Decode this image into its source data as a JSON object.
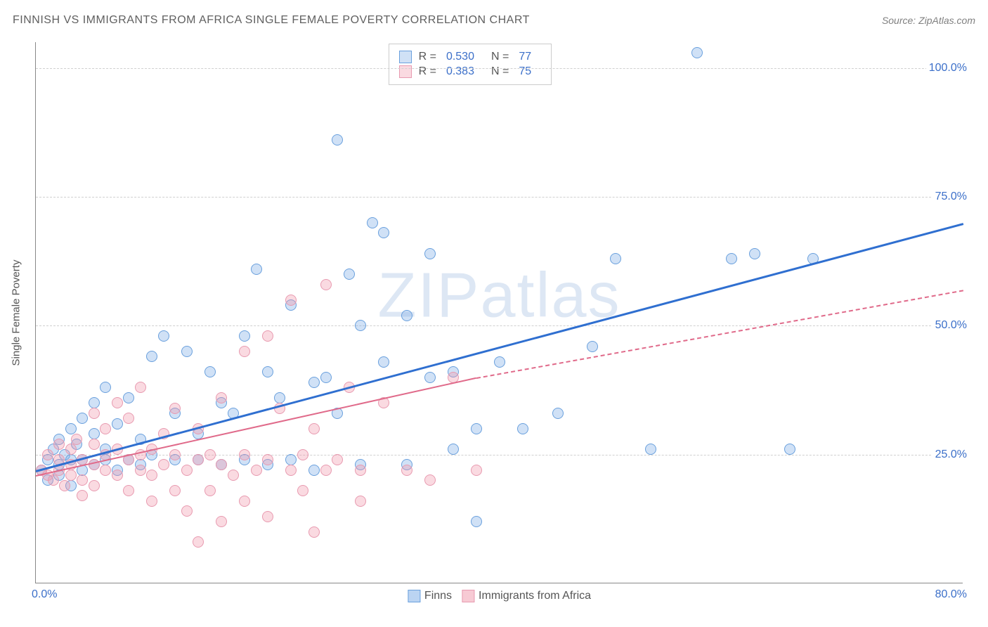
{
  "title": "FINNISH VS IMMIGRANTS FROM AFRICA SINGLE FEMALE POVERTY CORRELATION CHART",
  "source": "Source: ZipAtlas.com",
  "ylabel": "Single Female Poverty",
  "watermark_a": "ZIP",
  "watermark_b": "atlas",
  "chart": {
    "type": "scatter",
    "xlim": [
      0,
      80
    ],
    "ylim": [
      0,
      105
    ],
    "xtick_left": "0.0%",
    "xtick_right": "80.0%",
    "yticks": [
      {
        "v": 25,
        "label": "25.0%"
      },
      {
        "v": 50,
        "label": "50.0%"
      },
      {
        "v": 75,
        "label": "75.0%"
      },
      {
        "v": 100,
        "label": "100.0%"
      }
    ],
    "grid_color": "#d0d0d0",
    "background_color": "#ffffff",
    "point_radius": 8,
    "series": [
      {
        "name": "Finns",
        "fill": "rgba(120,170,230,0.35)",
        "stroke": "#6aa0dd",
        "r_label": "R =",
        "r_value": "0.530",
        "n_label": "N =",
        "n_value": "77",
        "trend": {
          "x1": 0,
          "y1": 22,
          "x2": 80,
          "y2": 70,
          "color": "#2f6fd0",
          "width": 3,
          "dashed": false
        },
        "points": [
          [
            0.5,
            22
          ],
          [
            1,
            24
          ],
          [
            1,
            20
          ],
          [
            1.5,
            26
          ],
          [
            2,
            23
          ],
          [
            2,
            21
          ],
          [
            2,
            28
          ],
          [
            2.5,
            25
          ],
          [
            3,
            24
          ],
          [
            3,
            30
          ],
          [
            3,
            19
          ],
          [
            3.5,
            27
          ],
          [
            4,
            22
          ],
          [
            4,
            32
          ],
          [
            4,
            24
          ],
          [
            5,
            29
          ],
          [
            5,
            35
          ],
          [
            5,
            23
          ],
          [
            6,
            26
          ],
          [
            6,
            38
          ],
          [
            6,
            24
          ],
          [
            7,
            31
          ],
          [
            7,
            22
          ],
          [
            8,
            36
          ],
          [
            8,
            24
          ],
          [
            9,
            28
          ],
          [
            9,
            23
          ],
          [
            10,
            25
          ],
          [
            10,
            44
          ],
          [
            11,
            48
          ],
          [
            12,
            33
          ],
          [
            12,
            24
          ],
          [
            13,
            45
          ],
          [
            14,
            29
          ],
          [
            14,
            24
          ],
          [
            15,
            41
          ],
          [
            16,
            35
          ],
          [
            16,
            23
          ],
          [
            17,
            33
          ],
          [
            18,
            48
          ],
          [
            18,
            24
          ],
          [
            19,
            61
          ],
          [
            20,
            41
          ],
          [
            20,
            23
          ],
          [
            21,
            36
          ],
          [
            22,
            54
          ],
          [
            22,
            24
          ],
          [
            24,
            39
          ],
          [
            24,
            22
          ],
          [
            25,
            40
          ],
          [
            26,
            86
          ],
          [
            26,
            33
          ],
          [
            27,
            60
          ],
          [
            28,
            50
          ],
          [
            28,
            23
          ],
          [
            29,
            70
          ],
          [
            30,
            43
          ],
          [
            30,
            68
          ],
          [
            32,
            52
          ],
          [
            32,
            23
          ],
          [
            34,
            40
          ],
          [
            34,
            64
          ],
          [
            36,
            41
          ],
          [
            36,
            26
          ],
          [
            38,
            12
          ],
          [
            38,
            30
          ],
          [
            40,
            43
          ],
          [
            42,
            30
          ],
          [
            45,
            33
          ],
          [
            48,
            46
          ],
          [
            50,
            63
          ],
          [
            53,
            26
          ],
          [
            57,
            103
          ],
          [
            60,
            63
          ],
          [
            62,
            64
          ],
          [
            65,
            26
          ],
          [
            67,
            63
          ]
        ]
      },
      {
        "name": "Immigrants from Africa",
        "fill": "rgba(240,150,170,0.35)",
        "stroke": "#e89ab0",
        "r_label": "R =",
        "r_value": "0.383",
        "n_label": "N =",
        "n_value": "75",
        "trend": {
          "x1": 0,
          "y1": 21,
          "x2": 38,
          "y2": 40,
          "color": "#e06a8a",
          "width": 2.5,
          "dashed": false,
          "ext_x2": 80,
          "ext_y2": 57,
          "ext_dashed": true
        },
        "points": [
          [
            0.5,
            22
          ],
          [
            1,
            25
          ],
          [
            1,
            21
          ],
          [
            1.5,
            20
          ],
          [
            2,
            24
          ],
          [
            2,
            27
          ],
          [
            2,
            22
          ],
          [
            2.5,
            19
          ],
          [
            3,
            26
          ],
          [
            3,
            23
          ],
          [
            3,
            21
          ],
          [
            3.5,
            28
          ],
          [
            4,
            24
          ],
          [
            4,
            20
          ],
          [
            4,
            17
          ],
          [
            5,
            23
          ],
          [
            5,
            27
          ],
          [
            5,
            33
          ],
          [
            5,
            19
          ],
          [
            6,
            25
          ],
          [
            6,
            22
          ],
          [
            6,
            30
          ],
          [
            7,
            26
          ],
          [
            7,
            21
          ],
          [
            7,
            35
          ],
          [
            8,
            24
          ],
          [
            8,
            18
          ],
          [
            8,
            32
          ],
          [
            9,
            25
          ],
          [
            9,
            22
          ],
          [
            9,
            38
          ],
          [
            10,
            26
          ],
          [
            10,
            21
          ],
          [
            10,
            16
          ],
          [
            11,
            23
          ],
          [
            11,
            29
          ],
          [
            12,
            25
          ],
          [
            12,
            18
          ],
          [
            12,
            34
          ],
          [
            13,
            22
          ],
          [
            13,
            14
          ],
          [
            14,
            24
          ],
          [
            14,
            30
          ],
          [
            14,
            8
          ],
          [
            15,
            25
          ],
          [
            15,
            18
          ],
          [
            16,
            23
          ],
          [
            16,
            36
          ],
          [
            16,
            12
          ],
          [
            17,
            21
          ],
          [
            18,
            25
          ],
          [
            18,
            45
          ],
          [
            18,
            16
          ],
          [
            19,
            22
          ],
          [
            20,
            24
          ],
          [
            20,
            48
          ],
          [
            20,
            13
          ],
          [
            21,
            34
          ],
          [
            22,
            22
          ],
          [
            22,
            55
          ],
          [
            23,
            25
          ],
          [
            23,
            18
          ],
          [
            24,
            30
          ],
          [
            24,
            10
          ],
          [
            25,
            22
          ],
          [
            25,
            58
          ],
          [
            26,
            24
          ],
          [
            27,
            38
          ],
          [
            28,
            22
          ],
          [
            28,
            16
          ],
          [
            30,
            35
          ],
          [
            32,
            22
          ],
          [
            34,
            20
          ],
          [
            36,
            40
          ],
          [
            38,
            22
          ]
        ]
      }
    ]
  },
  "legend_bottom": [
    {
      "label": "Finns",
      "fill": "rgba(120,170,230,0.5)",
      "stroke": "#6aa0dd"
    },
    {
      "label": "Immigrants from Africa",
      "fill": "rgba(240,150,170,0.5)",
      "stroke": "#e89ab0"
    }
  ]
}
